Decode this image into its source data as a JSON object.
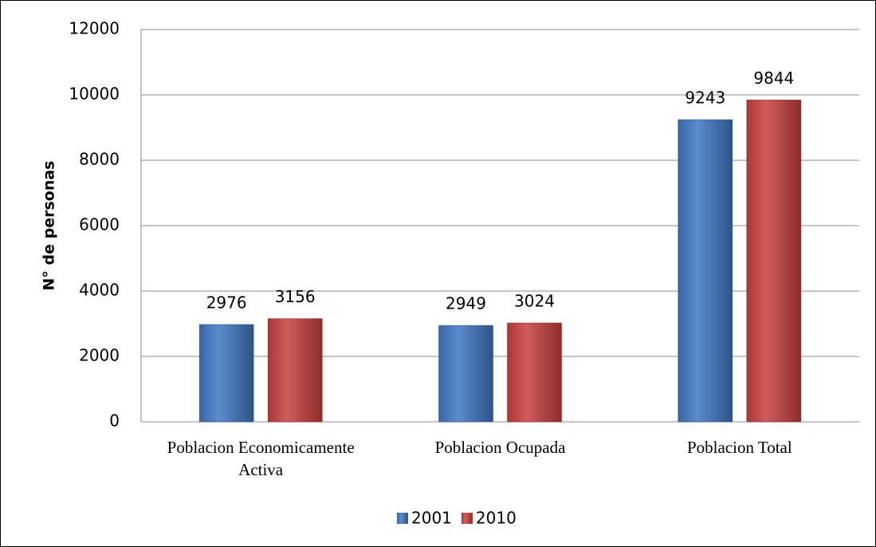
{
  "chart_data": {
    "type": "bar",
    "categories": [
      "Poblacion Economicamente Activa",
      "Poblacion Ocupada",
      "Poblacion Total"
    ],
    "series": [
      {
        "name": "2001",
        "color": "#3f78c4",
        "values": [
          2976,
          2949,
          9243
        ]
      },
      {
        "name": "2010",
        "color": "#c9403d",
        "values": [
          3156,
          3024,
          9844
        ]
      }
    ],
    "ylabel": "N° de personas",
    "ylim": [
      0,
      12000
    ],
    "yticks": [
      0,
      2000,
      4000,
      6000,
      8000,
      10000,
      12000
    ],
    "grid": true,
    "legend": "bottom"
  }
}
